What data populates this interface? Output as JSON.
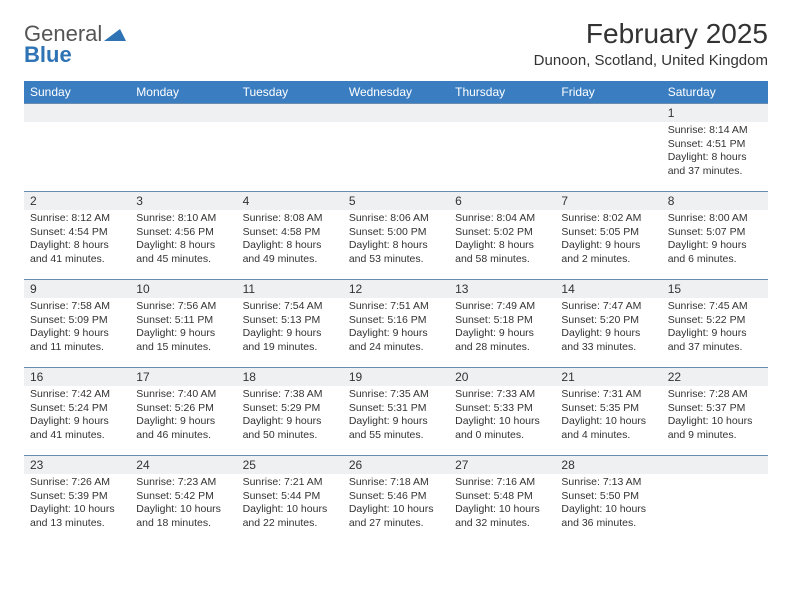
{
  "logo": {
    "word1": "General",
    "word2": "Blue",
    "tri_color": "#2e74b5"
  },
  "title": "February 2025",
  "location": "Dunoon, Scotland, United Kingdom",
  "header_bg": "#3a7ec1",
  "header_fg": "#ffffff",
  "rule_color": "#6a8daf",
  "shade_color": "#eef0f1",
  "day_labels": [
    "Sunday",
    "Monday",
    "Tuesday",
    "Wednesday",
    "Thursday",
    "Friday",
    "Saturday"
  ],
  "weeks": [
    [
      null,
      null,
      null,
      null,
      null,
      null,
      {
        "n": "1",
        "sr": "8:14 AM",
        "ss": "4:51 PM",
        "d1": "8 hours",
        "d2": "and 37 minutes."
      }
    ],
    [
      {
        "n": "2",
        "sr": "8:12 AM",
        "ss": "4:54 PM",
        "d1": "8 hours",
        "d2": "and 41 minutes."
      },
      {
        "n": "3",
        "sr": "8:10 AM",
        "ss": "4:56 PM",
        "d1": "8 hours",
        "d2": "and 45 minutes."
      },
      {
        "n": "4",
        "sr": "8:08 AM",
        "ss": "4:58 PM",
        "d1": "8 hours",
        "d2": "and 49 minutes."
      },
      {
        "n": "5",
        "sr": "8:06 AM",
        "ss": "5:00 PM",
        "d1": "8 hours",
        "d2": "and 53 minutes."
      },
      {
        "n": "6",
        "sr": "8:04 AM",
        "ss": "5:02 PM",
        "d1": "8 hours",
        "d2": "and 58 minutes."
      },
      {
        "n": "7",
        "sr": "8:02 AM",
        "ss": "5:05 PM",
        "d1": "9 hours",
        "d2": "and 2 minutes."
      },
      {
        "n": "8",
        "sr": "8:00 AM",
        "ss": "5:07 PM",
        "d1": "9 hours",
        "d2": "and 6 minutes."
      }
    ],
    [
      {
        "n": "9",
        "sr": "7:58 AM",
        "ss": "5:09 PM",
        "d1": "9 hours",
        "d2": "and 11 minutes."
      },
      {
        "n": "10",
        "sr": "7:56 AM",
        "ss": "5:11 PM",
        "d1": "9 hours",
        "d2": "and 15 minutes."
      },
      {
        "n": "11",
        "sr": "7:54 AM",
        "ss": "5:13 PM",
        "d1": "9 hours",
        "d2": "and 19 minutes."
      },
      {
        "n": "12",
        "sr": "7:51 AM",
        "ss": "5:16 PM",
        "d1": "9 hours",
        "d2": "and 24 minutes."
      },
      {
        "n": "13",
        "sr": "7:49 AM",
        "ss": "5:18 PM",
        "d1": "9 hours",
        "d2": "and 28 minutes."
      },
      {
        "n": "14",
        "sr": "7:47 AM",
        "ss": "5:20 PM",
        "d1": "9 hours",
        "d2": "and 33 minutes."
      },
      {
        "n": "15",
        "sr": "7:45 AM",
        "ss": "5:22 PM",
        "d1": "9 hours",
        "d2": "and 37 minutes."
      }
    ],
    [
      {
        "n": "16",
        "sr": "7:42 AM",
        "ss": "5:24 PM",
        "d1": "9 hours",
        "d2": "and 41 minutes."
      },
      {
        "n": "17",
        "sr": "7:40 AM",
        "ss": "5:26 PM",
        "d1": "9 hours",
        "d2": "and 46 minutes."
      },
      {
        "n": "18",
        "sr": "7:38 AM",
        "ss": "5:29 PM",
        "d1": "9 hours",
        "d2": "and 50 minutes."
      },
      {
        "n": "19",
        "sr": "7:35 AM",
        "ss": "5:31 PM",
        "d1": "9 hours",
        "d2": "and 55 minutes."
      },
      {
        "n": "20",
        "sr": "7:33 AM",
        "ss": "5:33 PM",
        "d1": "10 hours",
        "d2": "and 0 minutes."
      },
      {
        "n": "21",
        "sr": "7:31 AM",
        "ss": "5:35 PM",
        "d1": "10 hours",
        "d2": "and 4 minutes."
      },
      {
        "n": "22",
        "sr": "7:28 AM",
        "ss": "5:37 PM",
        "d1": "10 hours",
        "d2": "and 9 minutes."
      }
    ],
    [
      {
        "n": "23",
        "sr": "7:26 AM",
        "ss": "5:39 PM",
        "d1": "10 hours",
        "d2": "and 13 minutes."
      },
      {
        "n": "24",
        "sr": "7:23 AM",
        "ss": "5:42 PM",
        "d1": "10 hours",
        "d2": "and 18 minutes."
      },
      {
        "n": "25",
        "sr": "7:21 AM",
        "ss": "5:44 PM",
        "d1": "10 hours",
        "d2": "and 22 minutes."
      },
      {
        "n": "26",
        "sr": "7:18 AM",
        "ss": "5:46 PM",
        "d1": "10 hours",
        "d2": "and 27 minutes."
      },
      {
        "n": "27",
        "sr": "7:16 AM",
        "ss": "5:48 PM",
        "d1": "10 hours",
        "d2": "and 32 minutes."
      },
      {
        "n": "28",
        "sr": "7:13 AM",
        "ss": "5:50 PM",
        "d1": "10 hours",
        "d2": "and 36 minutes."
      },
      null
    ]
  ],
  "labels": {
    "sunrise": "Sunrise:",
    "sunset": "Sunset:",
    "daylight": "Daylight:"
  }
}
